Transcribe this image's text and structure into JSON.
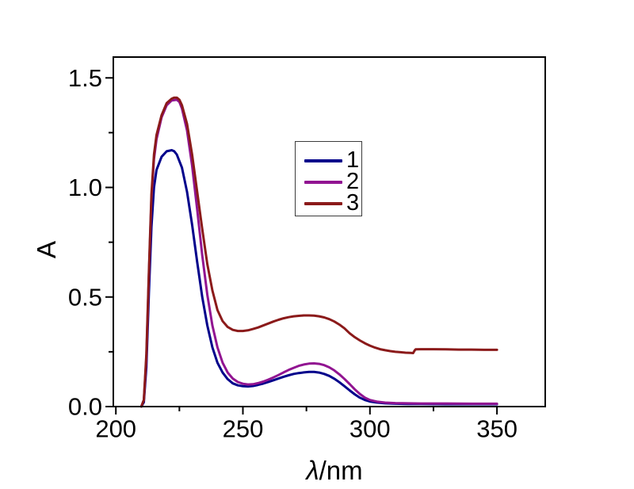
{
  "figure": {
    "background": "#ffffff",
    "frame_color": "#000000",
    "tick_color": "#000000",
    "text_color": "#000000"
  },
  "axes": {
    "y_label": "A",
    "x_label_symbol": "λ",
    "x_label_rest": "/nm"
  },
  "legend": {
    "position": "upper-middle",
    "entries": [
      {
        "label": "1",
        "color": "#00008B"
      },
      {
        "label": "2",
        "color": "#911491"
      },
      {
        "label": "3",
        "color": "#8B1A1A"
      }
    ]
  },
  "chart_data": {
    "type": "line",
    "title": "",
    "xlabel": "λ/nm",
    "ylabel": "A",
    "xlim": [
      199,
      369
    ],
    "ylim": [
      0,
      1.595
    ],
    "grid": false,
    "x_ticks": [
      200,
      250,
      300,
      350
    ],
    "x_tick_labels": [
      "200",
      "250",
      "300",
      "350"
    ],
    "x_minor_ticks": [
      225,
      275,
      325
    ],
    "y_ticks": [
      0,
      0.5,
      1.0,
      1.5
    ],
    "y_tick_labels": [
      "0.0",
      "0.5",
      "1.0",
      "1.5"
    ],
    "y_minor_ticks": [
      0.25,
      0.75,
      1.25
    ],
    "legend_position": "upper-middle",
    "series": [
      {
        "name": "1",
        "color": "#00008B",
        "peak_summary": "max ~1.17 at 222 nm; secondary band ~0.16 at 277 nm",
        "points": [
          [
            210,
            0
          ],
          [
            211,
            0.02
          ],
          [
            212,
            0.18
          ],
          [
            213,
            0.52
          ],
          [
            214,
            0.82
          ],
          [
            215,
            1.0
          ],
          [
            216,
            1.08
          ],
          [
            218,
            1.14
          ],
          [
            220,
            1.165
          ],
          [
            222,
            1.17
          ],
          [
            223,
            1.165
          ],
          [
            224,
            1.15
          ],
          [
            226,
            1.09
          ],
          [
            228,
            0.98
          ],
          [
            230,
            0.83
          ],
          [
            232,
            0.66
          ],
          [
            234,
            0.5
          ],
          [
            236,
            0.37
          ],
          [
            238,
            0.27
          ],
          [
            240,
            0.2
          ],
          [
            242,
            0.155
          ],
          [
            244,
            0.125
          ],
          [
            246,
            0.106
          ],
          [
            248,
            0.097
          ],
          [
            250,
            0.093
          ],
          [
            252,
            0.092
          ],
          [
            254,
            0.094
          ],
          [
            256,
            0.099
          ],
          [
            258,
            0.105
          ],
          [
            260,
            0.112
          ],
          [
            262,
            0.12
          ],
          [
            264,
            0.128
          ],
          [
            266,
            0.136
          ],
          [
            268,
            0.143
          ],
          [
            270,
            0.149
          ],
          [
            272,
            0.153
          ],
          [
            274,
            0.156
          ],
          [
            276,
            0.158
          ],
          [
            278,
            0.158
          ],
          [
            280,
            0.155
          ],
          [
            282,
            0.149
          ],
          [
            284,
            0.14
          ],
          [
            286,
            0.127
          ],
          [
            288,
            0.111
          ],
          [
            290,
            0.093
          ],
          [
            292,
            0.074
          ],
          [
            294,
            0.056
          ],
          [
            296,
            0.041
          ],
          [
            298,
            0.03
          ],
          [
            300,
            0.023
          ],
          [
            303,
            0.018
          ],
          [
            306,
            0.015
          ],
          [
            310,
            0.013
          ],
          [
            315,
            0.012
          ],
          [
            320,
            0.012
          ],
          [
            330,
            0.011
          ],
          [
            340,
            0.011
          ],
          [
            350,
            0.011
          ]
        ]
      },
      {
        "name": "2",
        "color": "#911491",
        "peak_summary": "max ~1.40 at 223 nm; secondary band ~0.20 at 278 nm",
        "points": [
          [
            210,
            0
          ],
          [
            211,
            0.03
          ],
          [
            212,
            0.22
          ],
          [
            213,
            0.6
          ],
          [
            214,
            0.95
          ],
          [
            215,
            1.13
          ],
          [
            216,
            1.22
          ],
          [
            218,
            1.32
          ],
          [
            220,
            1.375
          ],
          [
            222,
            1.397
          ],
          [
            224,
            1.4
          ],
          [
            225,
            1.39
          ],
          [
            226,
            1.36
          ],
          [
            228,
            1.26
          ],
          [
            230,
            1.1
          ],
          [
            232,
            0.9
          ],
          [
            234,
            0.69
          ],
          [
            236,
            0.51
          ],
          [
            238,
            0.37
          ],
          [
            240,
            0.27
          ],
          [
            242,
            0.2
          ],
          [
            244,
            0.155
          ],
          [
            246,
            0.128
          ],
          [
            248,
            0.112
          ],
          [
            250,
            0.104
          ],
          [
            252,
            0.101
          ],
          [
            254,
            0.102
          ],
          [
            256,
            0.107
          ],
          [
            258,
            0.114
          ],
          [
            260,
            0.123
          ],
          [
            262,
            0.133
          ],
          [
            264,
            0.144
          ],
          [
            266,
            0.156
          ],
          [
            268,
            0.167
          ],
          [
            270,
            0.177
          ],
          [
            272,
            0.186
          ],
          [
            274,
            0.192
          ],
          [
            276,
            0.196
          ],
          [
            278,
            0.197
          ],
          [
            280,
            0.195
          ],
          [
            282,
            0.189
          ],
          [
            284,
            0.179
          ],
          [
            286,
            0.165
          ],
          [
            288,
            0.147
          ],
          [
            290,
            0.126
          ],
          [
            292,
            0.103
          ],
          [
            294,
            0.079
          ],
          [
            296,
            0.058
          ],
          [
            298,
            0.041
          ],
          [
            300,
            0.03
          ],
          [
            303,
            0.022
          ],
          [
            306,
            0.018
          ],
          [
            310,
            0.016
          ],
          [
            315,
            0.015
          ],
          [
            320,
            0.014
          ],
          [
            330,
            0.014
          ],
          [
            340,
            0.013
          ],
          [
            350,
            0.013
          ]
        ]
      },
      {
        "name": "3",
        "color": "#8B1A1A",
        "peak_summary": "max ~1.41 at 224 nm; secondary band ~0.42 at 277 nm; step up to ~0.26 at 317 nm then flat to 350 nm",
        "points": [
          [
            210,
            0
          ],
          [
            211,
            0.03
          ],
          [
            212,
            0.24
          ],
          [
            213,
            0.62
          ],
          [
            214,
            0.97
          ],
          [
            215,
            1.15
          ],
          [
            216,
            1.24
          ],
          [
            218,
            1.33
          ],
          [
            220,
            1.385
          ],
          [
            222,
            1.405
          ],
          [
            223,
            1.41
          ],
          [
            224,
            1.41
          ],
          [
            225,
            1.4
          ],
          [
            226,
            1.375
          ],
          [
            228,
            1.29
          ],
          [
            230,
            1.15
          ],
          [
            232,
            0.98
          ],
          [
            234,
            0.81
          ],
          [
            236,
            0.65
          ],
          [
            238,
            0.53
          ],
          [
            240,
            0.44
          ],
          [
            242,
            0.39
          ],
          [
            244,
            0.363
          ],
          [
            246,
            0.35
          ],
          [
            248,
            0.345
          ],
          [
            250,
            0.345
          ],
          [
            252,
            0.348
          ],
          [
            254,
            0.354
          ],
          [
            256,
            0.361
          ],
          [
            258,
            0.37
          ],
          [
            260,
            0.379
          ],
          [
            262,
            0.388
          ],
          [
            264,
            0.396
          ],
          [
            266,
            0.403
          ],
          [
            268,
            0.408
          ],
          [
            270,
            0.412
          ],
          [
            272,
            0.414
          ],
          [
            274,
            0.416
          ],
          [
            276,
            0.416
          ],
          [
            278,
            0.415
          ],
          [
            280,
            0.412
          ],
          [
            282,
            0.407
          ],
          [
            284,
            0.399
          ],
          [
            286,
            0.388
          ],
          [
            288,
            0.374
          ],
          [
            290,
            0.357
          ],
          [
            292,
            0.335
          ],
          [
            294,
            0.317
          ],
          [
            296,
            0.302
          ],
          [
            298,
            0.289
          ],
          [
            300,
            0.278
          ],
          [
            302,
            0.269
          ],
          [
            304,
            0.262
          ],
          [
            306,
            0.257
          ],
          [
            308,
            0.253
          ],
          [
            310,
            0.25
          ],
          [
            312,
            0.248
          ],
          [
            314,
            0.246
          ],
          [
            316,
            0.245
          ],
          [
            317,
            0.244
          ],
          [
            317.6,
            0.256
          ],
          [
            318,
            0.261
          ],
          [
            320,
            0.262
          ],
          [
            325,
            0.262
          ],
          [
            330,
            0.261
          ],
          [
            335,
            0.26
          ],
          [
            340,
            0.26
          ],
          [
            345,
            0.259
          ],
          [
            350,
            0.259
          ]
        ]
      }
    ]
  }
}
